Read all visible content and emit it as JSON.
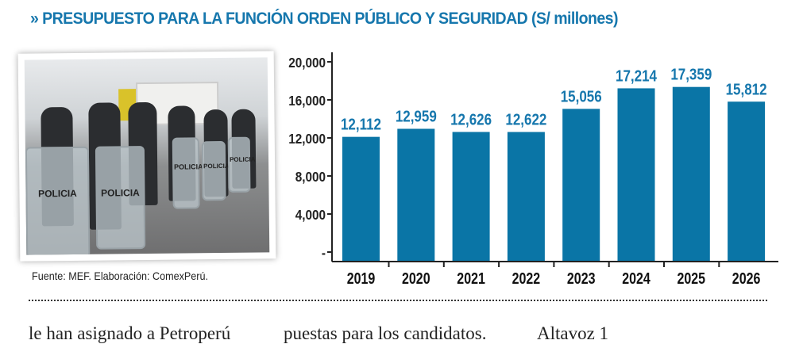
{
  "title": "» PRESUPUESTO PARA LA FUNCIÓN ORDEN PÚBLICO Y SEGURIDAD (S/ millones)",
  "photo": {
    "shield_text": "POLICIA"
  },
  "source": "Fuente: MEF. Elaboración: ComexPerú.",
  "body_text": [
    "le han asignado a Petroperú",
    "puestas para los candidatos.",
    "Altavoz 1"
  ],
  "colors": {
    "bar": "#0a75a6",
    "title": "#1677ad",
    "label": "#1677ad"
  },
  "chart_data": {
    "type": "bar",
    "title": "» PRESUPUESTO PARA LA FUNCIÓN ORDEN PÚBLICO Y SEGURIDAD (S/ millones)",
    "categories": [
      "2019",
      "2020",
      "2021",
      "2022",
      "2023",
      "2024",
      "2025",
      "2026"
    ],
    "values": [
      12112,
      12959,
      12626,
      12622,
      15056,
      17214,
      17359,
      15812
    ],
    "data_labels": [
      "12,112",
      "12,959",
      "12,626",
      "12,622",
      "15,056",
      "17,214",
      "17,359",
      "15,812"
    ],
    "yticks": [
      0,
      4000,
      8000,
      12000,
      16000,
      20000
    ],
    "ytick_labels": [
      "-",
      "4,000",
      "8,000",
      "12,000",
      "16,000",
      "20,000"
    ],
    "ylim": [
      0,
      20000
    ],
    "grid": false,
    "xlabel": "",
    "ylabel": ""
  }
}
